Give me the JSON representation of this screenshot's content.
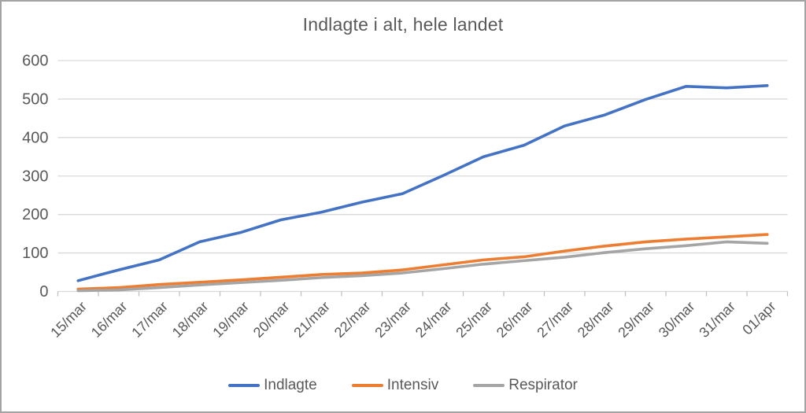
{
  "page": {
    "background": "#ffffff",
    "border_color": "#a3a3a3"
  },
  "chart_data": {
    "type": "line",
    "title": "Indlagte i alt, hele landet",
    "categories": [
      "15/mar",
      "16/mar",
      "17/mar",
      "18/mar",
      "19/mar",
      "20/mar",
      "21/mar",
      "22/mar",
      "23/mar",
      "24/mar",
      "25/mar",
      "26/mar",
      "27/mar",
      "28/mar",
      "29/mar",
      "30/mar",
      "31/mar",
      "01/apr"
    ],
    "series": [
      {
        "name": "Indlagte",
        "color": "#4472C4",
        "values": [
          28,
          56,
          82,
          129,
          153,
          186,
          206,
          232,
          254,
          301,
          350,
          380,
          430,
          459,
          499,
          533,
          529,
          535
        ]
      },
      {
        "name": "Intensiv",
        "color": "#ED7D31",
        "values": [
          6,
          10,
          18,
          24,
          30,
          37,
          44,
          48,
          56,
          69,
          82,
          90,
          105,
          118,
          129,
          136,
          142,
          148
        ]
      },
      {
        "name": "Respirator",
        "color": "#A5A5A5",
        "values": [
          2,
          4,
          10,
          17,
          23,
          29,
          36,
          41,
          48,
          59,
          71,
          80,
          89,
          101,
          111,
          119,
          129,
          125
        ]
      }
    ],
    "ylim": [
      0,
      600
    ],
    "ytick_step": 100,
    "ytick_labels": [
      "0",
      "100",
      "200",
      "300",
      "400",
      "500",
      "600"
    ],
    "xlabel": "",
    "ylabel": "",
    "grid": true,
    "legend_position": "bottom",
    "text_color": "#595959",
    "gridline_color": "#d9d9d9",
    "axis_tick_color": "#bfbfbf"
  }
}
